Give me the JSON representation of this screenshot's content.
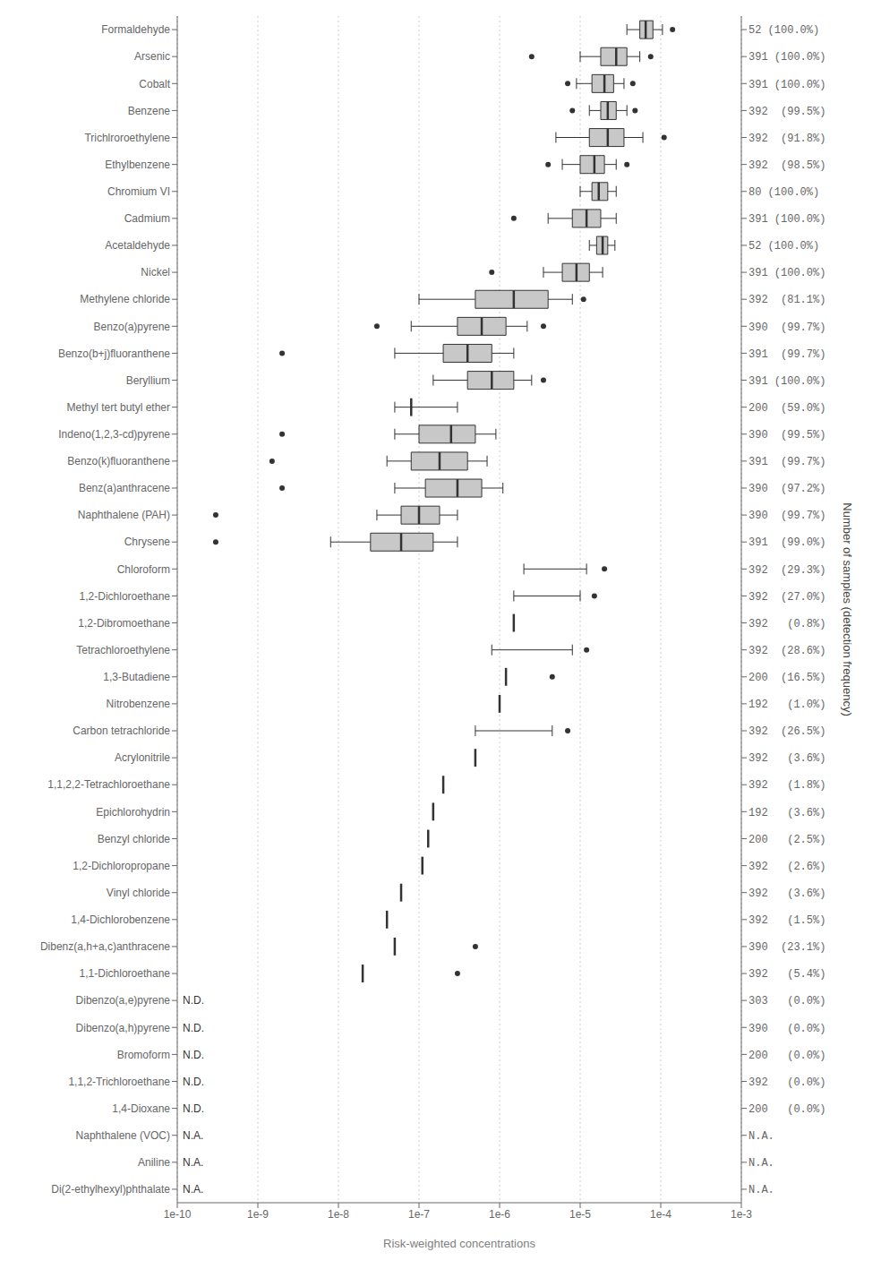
{
  "chart_data": {
    "type": "box",
    "orientation": "horizontal",
    "xlabel": "Risk-weighted concentrations",
    "ylabel": "Number of samples (detection frequency)",
    "log": "x",
    "grid": true,
    "color": "#c8c8c8",
    "xlim": [
      1e-10,
      0.001
    ],
    "xticks": [
      {
        "value": 1e-10,
        "label": "1e-10"
      },
      {
        "value": 1e-09,
        "label": "1e-9"
      },
      {
        "value": 1e-08,
        "label": "1e-8"
      },
      {
        "value": 1e-07,
        "label": "1e-7"
      },
      {
        "value": 1e-06,
        "label": "1e-6"
      },
      {
        "value": 1e-05,
        "label": "1e-5"
      },
      {
        "value": 0.0001,
        "label": "1e-4"
      },
      {
        "value": 0.001,
        "label": "1e-3"
      }
    ],
    "categories": [
      "Formaldehyde",
      "Arsenic",
      "Cobalt",
      "Benzene",
      "Trichlroroethylene",
      "Ethylbenzene",
      "Chromium VI",
      "Cadmium",
      "Acetaldehyde",
      "Nickel",
      "Methylene chloride",
      "Benzo(a)pyrene",
      "Benzo(b+j)fluoranthene",
      "Beryllium",
      "Methyl tert butyl ether",
      "Indeno(1,2,3-cd)pyrene",
      "Benzo(k)fluoranthene",
      "Benz(a)anthracene",
      "Naphthalene (PAH)",
      "Chrysene",
      "Chloroform",
      "1,2-Dichloroethane",
      "1,2-Dibromoethane",
      "Tetrachloroethylene",
      "1,3-Butadiene",
      "Nitrobenzene",
      "Carbon tetrachloride",
      "Acrylonitrile",
      "1,1,2,2-Tetrachloroethane",
      "Epichlorohydrin",
      "Benzyl chloride",
      "1,2-Dichloropropane",
      "Vinyl chloride",
      "1,4-Dichlorobenzene",
      "Dibenz(a,h+a,c)anthracene",
      "1,1-Dichloroethane",
      "Dibenzo(a,e)pyrene",
      "Dibenzo(a,h)pyrene",
      "Bromoform",
      "1,1,2-Trichloroethane",
      "1,4-Dioxane",
      "Naphthalene (VOC)",
      "Aniline",
      "Di(2-ethylhexyl)phthalate"
    ],
    "right_labels": [
      "52 (100.0%)",
      "391 (100.0%)",
      "391 (100.0%)",
      "392  (99.5%)",
      "392  (91.8%)",
      "392  (98.5%)",
      "80 (100.0%)",
      "391 (100.0%)",
      "52 (100.0%)",
      "391 (100.0%)",
      "392  (81.1%)",
      "390  (99.7%)",
      "391  (99.7%)",
      "391 (100.0%)",
      "200  (59.0%)",
      "390  (99.5%)",
      "391  (99.7%)",
      "390  (97.2%)",
      "390  (99.7%)",
      "391  (99.0%)",
      "392  (29.3%)",
      "392  (27.0%)",
      "392   (0.8%)",
      "392  (28.6%)",
      "200  (16.5%)",
      "192   (1.0%)",
      "392  (26.5%)",
      "392   (3.6%)",
      "392   (1.8%)",
      "192   (3.6%)",
      "200   (2.5%)",
      "392   (2.6%)",
      "392   (3.6%)",
      "392   (1.5%)",
      "390  (23.1%)",
      "392   (5.4%)",
      "303   (0.0%)",
      "390   (0.0%)",
      "200   (0.0%)",
      "392   (0.0%)",
      "200   (0.0%)",
      "N.A.",
      "N.A.",
      "N.A."
    ],
    "boxes": [
      {
        "whislo": 3.8e-05,
        "q1": 5.5e-05,
        "med": 6.5e-05,
        "q3": 8e-05,
        "whishi": 0.000105,
        "fliers": [
          0.00014
        ]
      },
      {
        "whislo": 1e-05,
        "q1": 1.8e-05,
        "med": 2.8e-05,
        "q3": 3.8e-05,
        "whishi": 5.5e-05,
        "fliers": [
          2.5e-06,
          7.5e-05
        ]
      },
      {
        "whislo": 9e-06,
        "q1": 1.4e-05,
        "med": 2e-05,
        "q3": 2.6e-05,
        "whishi": 3.5e-05,
        "fliers": [
          7e-06,
          4.5e-05
        ]
      },
      {
        "whislo": 1.3e-05,
        "q1": 1.8e-05,
        "med": 2.2e-05,
        "q3": 2.8e-05,
        "whishi": 3.8e-05,
        "fliers": [
          8e-06,
          4.8e-05
        ]
      },
      {
        "whislo": 5e-06,
        "q1": 1.3e-05,
        "med": 2.2e-05,
        "q3": 3.5e-05,
        "whishi": 6e-05,
        "fliers": [
          0.00011
        ]
      },
      {
        "whislo": 6e-06,
        "q1": 1e-05,
        "med": 1.5e-05,
        "q3": 2e-05,
        "whishi": 2.8e-05,
        "fliers": [
          4e-06,
          3.8e-05
        ]
      },
      {
        "whislo": 1e-05,
        "q1": 1.4e-05,
        "med": 1.7e-05,
        "q3": 2.2e-05,
        "whishi": 2.8e-05,
        "fliers": []
      },
      {
        "whislo": 4e-06,
        "q1": 8e-06,
        "med": 1.2e-05,
        "q3": 1.8e-05,
        "whishi": 2.8e-05,
        "fliers": [
          1.5e-06
        ]
      },
      {
        "whislo": 1.3e-05,
        "q1": 1.6e-05,
        "med": 1.9e-05,
        "q3": 2.2e-05,
        "whishi": 2.7e-05,
        "fliers": []
      },
      {
        "whislo": 3.5e-06,
        "q1": 6e-06,
        "med": 9e-06,
        "q3": 1.3e-05,
        "whishi": 1.9e-05,
        "fliers": [
          8e-07
        ]
      },
      {
        "whislo": 1e-07,
        "q1": 5e-07,
        "med": 1.5e-06,
        "q3": 4e-06,
        "whishi": 8e-06,
        "fliers": [
          1.1e-05
        ]
      },
      {
        "whislo": 8e-08,
        "q1": 3e-07,
        "med": 6e-07,
        "q3": 1.2e-06,
        "whishi": 2.2e-06,
        "fliers": [
          3e-08,
          3.5e-06
        ]
      },
      {
        "whislo": 5e-08,
        "q1": 2e-07,
        "med": 4e-07,
        "q3": 8e-07,
        "whishi": 1.5e-06,
        "fliers": [
          2e-09
        ]
      },
      {
        "whislo": 1.5e-07,
        "q1": 4e-07,
        "med": 8e-07,
        "q3": 1.5e-06,
        "whishi": 2.5e-06,
        "fliers": [
          3.5e-06
        ]
      },
      {
        "whislo": 5e-08,
        "q1": null,
        "med": 8e-08,
        "q3": null,
        "whishi": 3e-07,
        "fliers": []
      },
      {
        "whislo": 5e-08,
        "q1": 1e-07,
        "med": 2.5e-07,
        "q3": 5e-07,
        "whishi": 9e-07,
        "fliers": [
          2e-09
        ]
      },
      {
        "whislo": 4e-08,
        "q1": 8e-08,
        "med": 1.8e-07,
        "q3": 4e-07,
        "whishi": 7e-07,
        "fliers": [
          1.5e-09
        ]
      },
      {
        "whislo": 5e-08,
        "q1": 1.2e-07,
        "med": 3e-07,
        "q3": 6e-07,
        "whishi": 1.1e-06,
        "fliers": [
          2e-09
        ]
      },
      {
        "whislo": 3e-08,
        "q1": 6e-08,
        "med": 1e-07,
        "q3": 1.8e-07,
        "whishi": 3e-07,
        "fliers": [
          3e-10
        ]
      },
      {
        "whislo": 8e-09,
        "q1": 2.5e-08,
        "med": 6e-08,
        "q3": 1.5e-07,
        "whishi": 3e-07,
        "fliers": [
          3e-10
        ]
      },
      {
        "whislo": 2e-06,
        "q1": null,
        "med": null,
        "q3": null,
        "whishi": 1.2e-05,
        "fliers": [
          2e-05
        ]
      },
      {
        "whislo": 1.5e-06,
        "q1": null,
        "med": null,
        "q3": null,
        "whishi": 1e-05,
        "fliers": [
          1.5e-05
        ]
      },
      {
        "whislo": null,
        "q1": null,
        "med": 1.5e-06,
        "q3": null,
        "whishi": null,
        "fliers": []
      },
      {
        "whislo": 8e-07,
        "q1": null,
        "med": null,
        "q3": null,
        "whishi": 8e-06,
        "fliers": [
          1.2e-05
        ]
      },
      {
        "whislo": null,
        "q1": null,
        "med": 1.2e-06,
        "q3": null,
        "whishi": null,
        "fliers": [
          4.5e-06
        ]
      },
      {
        "whislo": null,
        "q1": null,
        "med": 1e-06,
        "q3": null,
        "whishi": null,
        "fliers": []
      },
      {
        "whislo": 5e-07,
        "q1": null,
        "med": null,
        "q3": null,
        "whishi": 4.5e-06,
        "fliers": [
          7e-06
        ]
      },
      {
        "whislo": null,
        "q1": null,
        "med": 5e-07,
        "q3": null,
        "whishi": null,
        "fliers": []
      },
      {
        "whislo": null,
        "q1": null,
        "med": 2e-07,
        "q3": null,
        "whishi": null,
        "fliers": []
      },
      {
        "whislo": null,
        "q1": null,
        "med": 1.5e-07,
        "q3": null,
        "whishi": null,
        "fliers": []
      },
      {
        "whislo": null,
        "q1": null,
        "med": 1.3e-07,
        "q3": null,
        "whishi": null,
        "fliers": []
      },
      {
        "whislo": null,
        "q1": null,
        "med": 1.1e-07,
        "q3": null,
        "whishi": null,
        "fliers": []
      },
      {
        "whislo": null,
        "q1": null,
        "med": 6e-08,
        "q3": null,
        "whishi": null,
        "fliers": []
      },
      {
        "whislo": null,
        "q1": null,
        "med": 4e-08,
        "q3": null,
        "whishi": null,
        "fliers": []
      },
      {
        "whislo": null,
        "q1": null,
        "med": 5e-08,
        "q3": null,
        "whishi": null,
        "fliers": [
          5e-07
        ]
      },
      {
        "whislo": null,
        "q1": null,
        "med": 2e-08,
        "q3": null,
        "whishi": null,
        "fliers": [
          3e-07
        ]
      },
      {
        "whislo": null,
        "q1": null,
        "med": null,
        "q3": null,
        "whishi": null,
        "fliers": []
      },
      {
        "whislo": null,
        "q1": null,
        "med": null,
        "q3": null,
        "whishi": null,
        "fliers": []
      },
      {
        "whislo": null,
        "q1": null,
        "med": null,
        "q3": null,
        "whishi": null,
        "fliers": []
      },
      {
        "whislo": null,
        "q1": null,
        "med": null,
        "q3": null,
        "whishi": null,
        "fliers": []
      },
      {
        "whislo": null,
        "q1": null,
        "med": null,
        "q3": null,
        "whishi": null,
        "fliers": []
      },
      {
        "whislo": null,
        "q1": null,
        "med": null,
        "q3": null,
        "whishi": null,
        "fliers": []
      },
      {
        "whislo": null,
        "q1": null,
        "med": null,
        "q3": null,
        "whishi": null,
        "fliers": []
      },
      {
        "whislo": null,
        "q1": null,
        "med": null,
        "q3": null,
        "whishi": null,
        "fliers": []
      }
    ],
    "annotations": [
      {
        "category": "Dibenzo(a,e)pyrene",
        "text": "N.D."
      },
      {
        "category": "Dibenzo(a,h)pyrene",
        "text": "N.D."
      },
      {
        "category": "Bromoform",
        "text": "N.D."
      },
      {
        "category": "1,1,2-Trichloroethane",
        "text": "N.D."
      },
      {
        "category": "1,4-Dioxane",
        "text": "N.D."
      },
      {
        "category": "Naphthalene (VOC)",
        "text": "N.A."
      },
      {
        "category": "Aniline",
        "text": "N.A."
      },
      {
        "category": "Di(2-ethylhexyl)phthalate",
        "text": "N.A."
      }
    ]
  }
}
